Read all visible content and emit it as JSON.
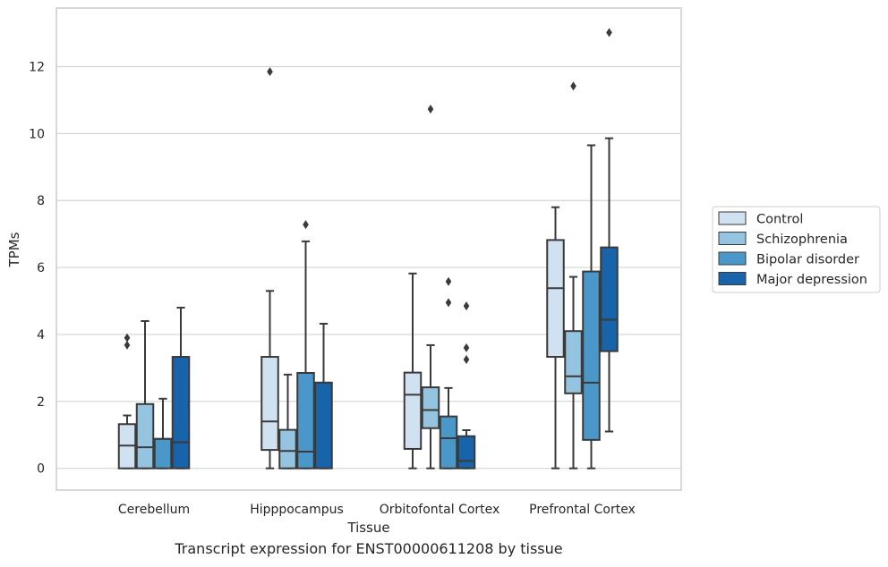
{
  "chart_data": {
    "type": "box",
    "xlabel": "Tissue",
    "ylabel": "TPMs",
    "ylim": [
      -0.65,
      13.75
    ],
    "yticks": [
      0,
      2,
      4,
      6,
      8,
      10,
      12
    ],
    "grid": true,
    "legend_position": "right",
    "categories": [
      "Cerebellum",
      "Hipppocampus",
      "Orbitofontal Cortex",
      "Prefrontal Cortex"
    ],
    "series": [
      {
        "name": "Control",
        "color": "#d0e1f2",
        "boxes": [
          {
            "q1": 0.0,
            "median": 0.68,
            "q3": 1.32,
            "whisker_low": 0.0,
            "whisker_high": 1.58,
            "outliers": [
              3.68,
              3.9
            ]
          },
          {
            "q1": 0.55,
            "median": 1.4,
            "q3": 3.33,
            "whisker_low": 0.0,
            "whisker_high": 5.3,
            "outliers": [
              11.85
            ]
          },
          {
            "q1": 0.58,
            "median": 2.2,
            "q3": 2.86,
            "whisker_low": 0.0,
            "whisker_high": 5.82,
            "outliers": []
          },
          {
            "q1": 3.33,
            "median": 5.38,
            "q3": 6.82,
            "whisker_low": 0.0,
            "whisker_high": 7.8,
            "outliers": []
          }
        ]
      },
      {
        "name": "Schizophrenia",
        "color": "#94c4df",
        "boxes": [
          {
            "q1": 0.0,
            "median": 0.63,
            "q3": 1.92,
            "whisker_low": 0.0,
            "whisker_high": 4.4,
            "outliers": []
          },
          {
            "q1": 0.0,
            "median": 0.52,
            "q3": 1.15,
            "whisker_low": 0.0,
            "whisker_high": 2.8,
            "outliers": []
          },
          {
            "q1": 1.2,
            "median": 1.74,
            "q3": 2.42,
            "whisker_low": 0.0,
            "whisker_high": 3.68,
            "outliers": [
              10.73
            ]
          },
          {
            "q1": 2.24,
            "median": 2.75,
            "q3": 4.1,
            "whisker_low": 0.0,
            "whisker_high": 5.72,
            "outliers": [
              11.42
            ]
          }
        ]
      },
      {
        "name": "Bipolar disorder",
        "color": "#4a98c9",
        "boxes": [
          {
            "q1": 0.0,
            "median": 0.88,
            "q3": 0.88,
            "whisker_low": 0.0,
            "whisker_high": 2.08,
            "outliers": []
          },
          {
            "q1": 0.0,
            "median": 0.5,
            "q3": 2.85,
            "whisker_low": 0.0,
            "whisker_high": 6.78,
            "outliers": [
              7.28
            ]
          },
          {
            "q1": 0.0,
            "median": 0.9,
            "q3": 1.55,
            "whisker_low": 0.0,
            "whisker_high": 2.4,
            "outliers": [
              4.95,
              5.58
            ]
          },
          {
            "q1": 0.85,
            "median": 2.56,
            "q3": 5.88,
            "whisker_low": 0.0,
            "whisker_high": 9.65,
            "outliers": []
          }
        ]
      },
      {
        "name": "Major depression",
        "color": "#1764ab",
        "boxes": [
          {
            "q1": 0.0,
            "median": 0.78,
            "q3": 3.33,
            "whisker_low": 0.0,
            "whisker_high": 4.8,
            "outliers": []
          },
          {
            "q1": 0.0,
            "median": 2.56,
            "q3": 2.56,
            "whisker_low": 0.0,
            "whisker_high": 4.32,
            "outliers": []
          },
          {
            "q1": 0.0,
            "median": 0.22,
            "q3": 0.96,
            "whisker_low": 0.0,
            "whisker_high": 1.14,
            "outliers": [
              3.25,
              3.6,
              4.85
            ]
          },
          {
            "q1": 3.5,
            "median": 4.44,
            "q3": 6.6,
            "whisker_low": 1.1,
            "whisker_high": 9.86,
            "outliers": [
              13.02
            ]
          }
        ]
      }
    ]
  },
  "caption": "Transcript expression for ENST00000611208 by tissue"
}
